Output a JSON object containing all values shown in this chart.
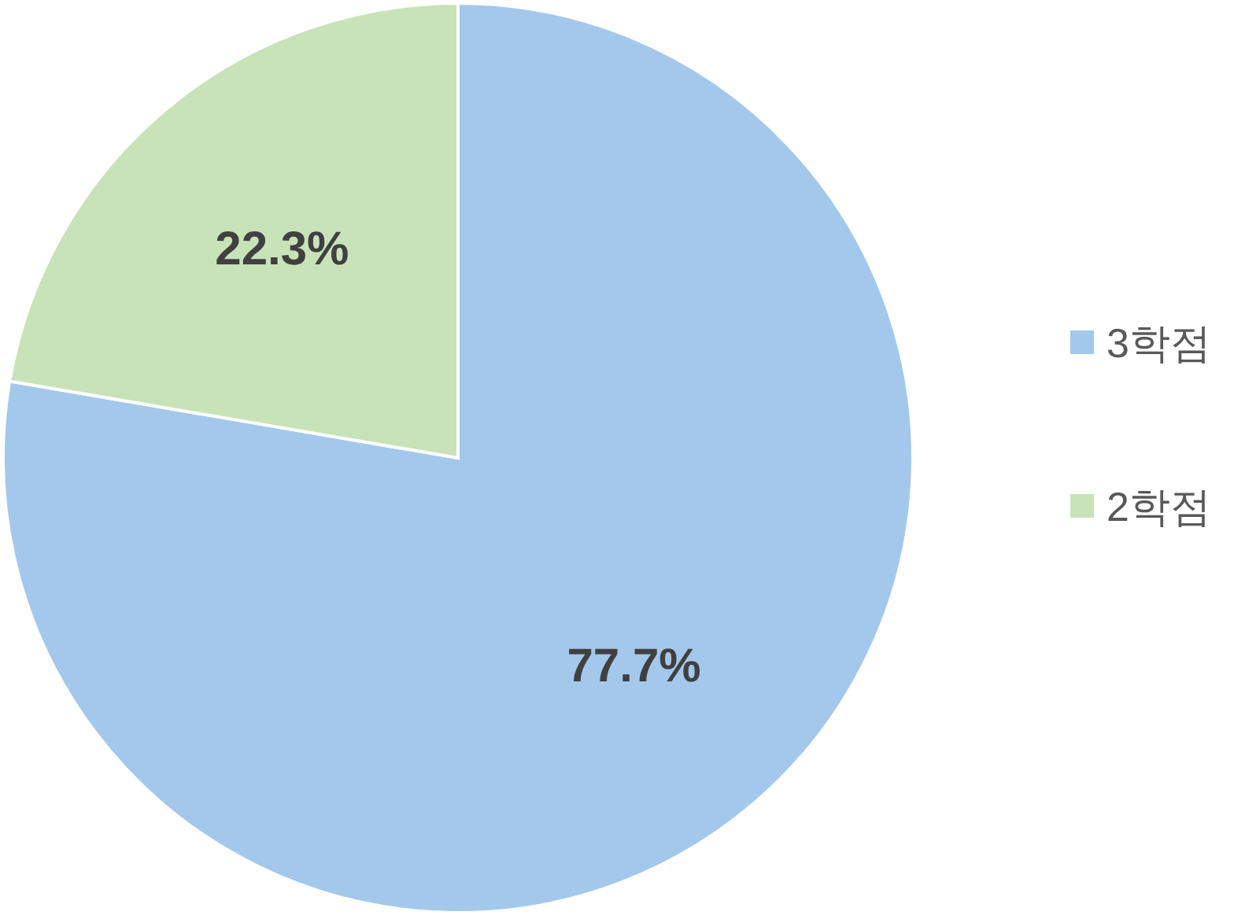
{
  "chart_data": {
    "type": "pie",
    "categories": [
      "3학점",
      "2학점"
    ],
    "values": [
      77.7,
      22.3
    ],
    "colors": [
      "#a3c8ec",
      "#c9e3b9"
    ],
    "value_labels": [
      "77.7%",
      "22.3%"
    ],
    "legend": "right"
  }
}
